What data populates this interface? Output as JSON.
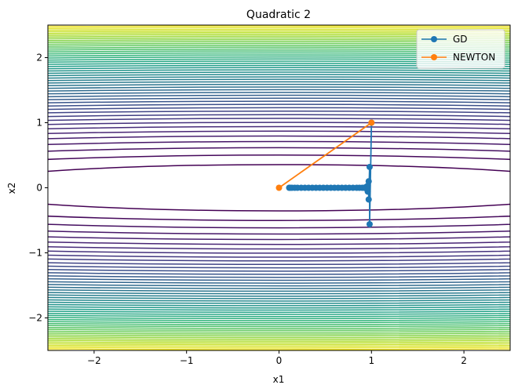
{
  "chart_data": {
    "type": "line",
    "title": "Quadratic 2",
    "xlabel": "x1",
    "ylabel": "x2",
    "xlim": [
      -2.5,
      2.5
    ],
    "ylim": [
      -2.5,
      2.5
    ],
    "xticks": [
      -2,
      -1,
      0,
      1,
      2
    ],
    "yticks": [
      -2,
      -1,
      0,
      1,
      2
    ],
    "xtick_labels": [
      "−2",
      "−1",
      "0",
      "1",
      "2"
    ],
    "ytick_labels": [
      "−2",
      "−1",
      "0",
      "1",
      "2"
    ],
    "grid": false,
    "legend_position": "top-right",
    "contour": {
      "function": "f(x1, x2) = x1^2 + 100 * x2^2",
      "colormap": "viridis",
      "levels": 50
    },
    "series": [
      {
        "name": "GD",
        "color": "#1f77b4",
        "marker": "circle",
        "x": [
          1.0,
          0.98,
          0.98,
          0.97,
          0.97,
          0.96,
          0.96,
          0.95,
          0.94,
          0.92,
          0.9,
          0.87,
          0.84,
          0.8,
          0.76,
          0.72,
          0.68,
          0.64,
          0.6,
          0.56,
          0.52,
          0.48,
          0.44,
          0.4,
          0.36,
          0.32,
          0.28,
          0.24,
          0.2,
          0.17,
          0.14,
          0.12,
          0.11
        ],
        "y": [
          1.0,
          -0.56,
          0.32,
          -0.18,
          0.1,
          -0.06,
          0.03,
          -0.02,
          0.01,
          0.0,
          0.0,
          0.0,
          0.0,
          0.0,
          0.0,
          0.0,
          0.0,
          0.0,
          0.0,
          0.0,
          0.0,
          0.0,
          0.0,
          0.0,
          0.0,
          0.0,
          0.0,
          0.0,
          0.0,
          0.0,
          0.0,
          0.0,
          0.0
        ]
      },
      {
        "name": "NEWTON",
        "color": "#ff7f0e",
        "marker": "circle",
        "x": [
          1.0,
          0.0
        ],
        "y": [
          1.0,
          0.0
        ]
      }
    ]
  }
}
